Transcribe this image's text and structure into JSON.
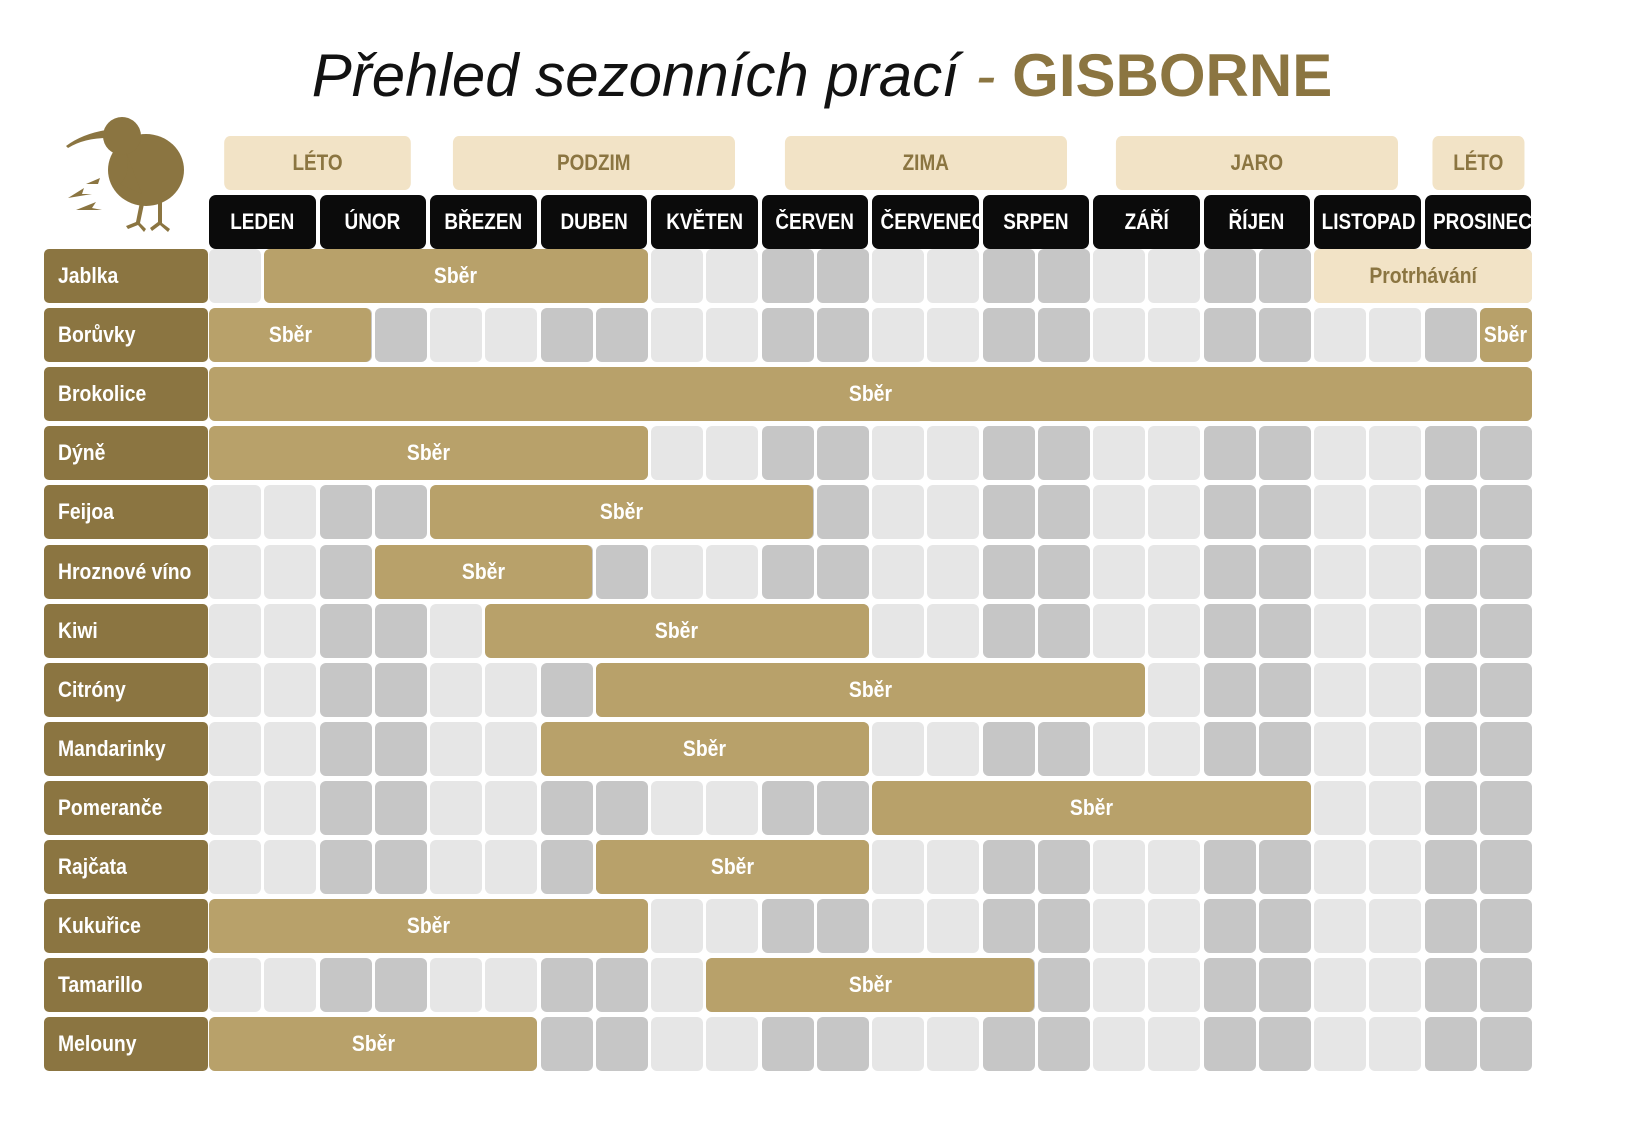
{
  "title": {
    "main": "Přehled sezonních prací",
    "separator": "-",
    "place": "GISBORNE"
  },
  "logo": {
    "icon": "kiwi-bird-icon"
  },
  "colors": {
    "brand": "#8b7541",
    "harvest": "#b8a16a",
    "thinning": "#f2e3c6",
    "season_bg": "#f2e3c6",
    "month_bg": "#0b0b0b",
    "cell_light": "#e6e6e6",
    "cell_dark": "#c6c6c6"
  },
  "seasons": [
    {
      "label": "LÉTO",
      "start": 0,
      "end": 2
    },
    {
      "label": "PODZIM",
      "start": 2,
      "end": 5
    },
    {
      "label": "ZIMA",
      "start": 5,
      "end": 8
    },
    {
      "label": "JARO",
      "start": 8,
      "end": 11
    },
    {
      "label": "LÉTO",
      "start": 11,
      "end": 12
    }
  ],
  "months": [
    "LEDEN",
    "ÚNOR",
    "BŘEZEN",
    "DUBEN",
    "KVĚTEN",
    "ČERVEN",
    "ČERVENEC",
    "SRPEN",
    "ZÁŘÍ",
    "ŘÍJEN",
    "LISTOPAD",
    "PROSINEC"
  ],
  "crops": [
    {
      "name": "Jablka",
      "periods": [
        {
          "label": "Sběr",
          "start": 1,
          "end": 8,
          "kind": "harvest"
        },
        {
          "label": "Protrhávání",
          "start": 20,
          "end": 24,
          "kind": "thinning"
        }
      ]
    },
    {
      "name": "Borůvky",
      "periods": [
        {
          "label": "Sběr",
          "start": 0,
          "end": 3,
          "kind": "harvest"
        },
        {
          "label": "Sběr",
          "start": 23,
          "end": 24,
          "kind": "harvest"
        }
      ]
    },
    {
      "name": "Brokolice",
      "periods": [
        {
          "label": "Sběr",
          "start": 0,
          "end": 24,
          "kind": "harvest"
        }
      ]
    },
    {
      "name": "Dýně",
      "periods": [
        {
          "label": "Sběr",
          "start": 0,
          "end": 8,
          "kind": "harvest"
        }
      ]
    },
    {
      "name": "Feijoa",
      "periods": [
        {
          "label": "Sběr",
          "start": 4,
          "end": 11,
          "kind": "harvest"
        }
      ]
    },
    {
      "name": "Hroznové víno",
      "periods": [
        {
          "label": "Sběr",
          "start": 3,
          "end": 7,
          "kind": "harvest"
        }
      ]
    },
    {
      "name": "Kiwi",
      "periods": [
        {
          "label": "Sběr",
          "start": 5,
          "end": 12,
          "kind": "harvest"
        }
      ]
    },
    {
      "name": "Citróny",
      "periods": [
        {
          "label": "Sběr",
          "start": 7,
          "end": 17,
          "kind": "harvest"
        }
      ]
    },
    {
      "name": "Mandarinky",
      "periods": [
        {
          "label": "Sběr",
          "start": 6,
          "end": 12,
          "kind": "harvest"
        }
      ]
    },
    {
      "name": "Pomeranče",
      "periods": [
        {
          "label": "Sběr",
          "start": 12,
          "end": 20,
          "kind": "harvest"
        }
      ]
    },
    {
      "name": "Rajčata",
      "periods": [
        {
          "label": "Sběr",
          "start": 7,
          "end": 12,
          "kind": "harvest"
        }
      ]
    },
    {
      "name": "Kukuřice",
      "periods": [
        {
          "label": "Sběr",
          "start": 0,
          "end": 8,
          "kind": "harvest"
        }
      ]
    },
    {
      "name": "Tamarillo",
      "periods": [
        {
          "label": "Sběr",
          "start": 9,
          "end": 15,
          "kind": "harvest"
        }
      ]
    },
    {
      "name": "Melouny",
      "periods": [
        {
          "label": "Sběr",
          "start": 0,
          "end": 6,
          "kind": "harvest"
        }
      ]
    }
  ]
}
